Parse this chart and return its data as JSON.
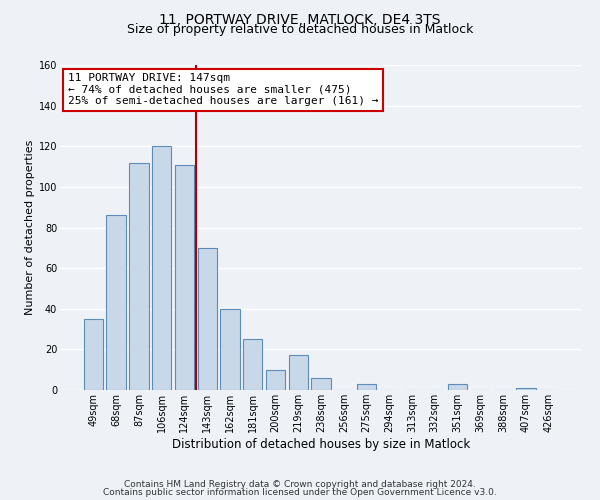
{
  "title": "11, PORTWAY DRIVE, MATLOCK, DE4 3TS",
  "subtitle": "Size of property relative to detached houses in Matlock",
  "xlabel": "Distribution of detached houses by size in Matlock",
  "ylabel": "Number of detached properties",
  "bin_labels": [
    "49sqm",
    "68sqm",
    "87sqm",
    "106sqm",
    "124sqm",
    "143sqm",
    "162sqm",
    "181sqm",
    "200sqm",
    "219sqm",
    "238sqm",
    "256sqm",
    "275sqm",
    "294sqm",
    "313sqm",
    "332sqm",
    "351sqm",
    "369sqm",
    "388sqm",
    "407sqm",
    "426sqm"
  ],
  "bar_values": [
    35,
    86,
    112,
    120,
    111,
    70,
    40,
    25,
    10,
    17,
    6,
    0,
    3,
    0,
    0,
    0,
    3,
    0,
    0,
    1,
    0
  ],
  "bar_color": "#c8d8e8",
  "bar_edge_color": "#5b8db8",
  "marker_color": "#aa0000",
  "ylim": [
    0,
    160
  ],
  "yticks": [
    0,
    20,
    40,
    60,
    80,
    100,
    120,
    140,
    160
  ],
  "annotation_title": "11 PORTWAY DRIVE: 147sqm",
  "annotation_line1": "← 74% of detached houses are smaller (475)",
  "annotation_line2": "25% of semi-detached houses are larger (161) →",
  "annotation_box_color": "#ffffff",
  "annotation_box_edge": "#cc0000",
  "footer_line1": "Contains HM Land Registry data © Crown copyright and database right 2024.",
  "footer_line2": "Contains public sector information licensed under the Open Government Licence v3.0.",
  "background_color": "#eef2f7",
  "grid_color": "#ffffff",
  "title_fontsize": 10,
  "subtitle_fontsize": 9,
  "tick_label_fontsize": 7,
  "ylabel_fontsize": 8,
  "xlabel_fontsize": 8.5,
  "annotation_fontsize": 8,
  "footer_fontsize": 6.5
}
